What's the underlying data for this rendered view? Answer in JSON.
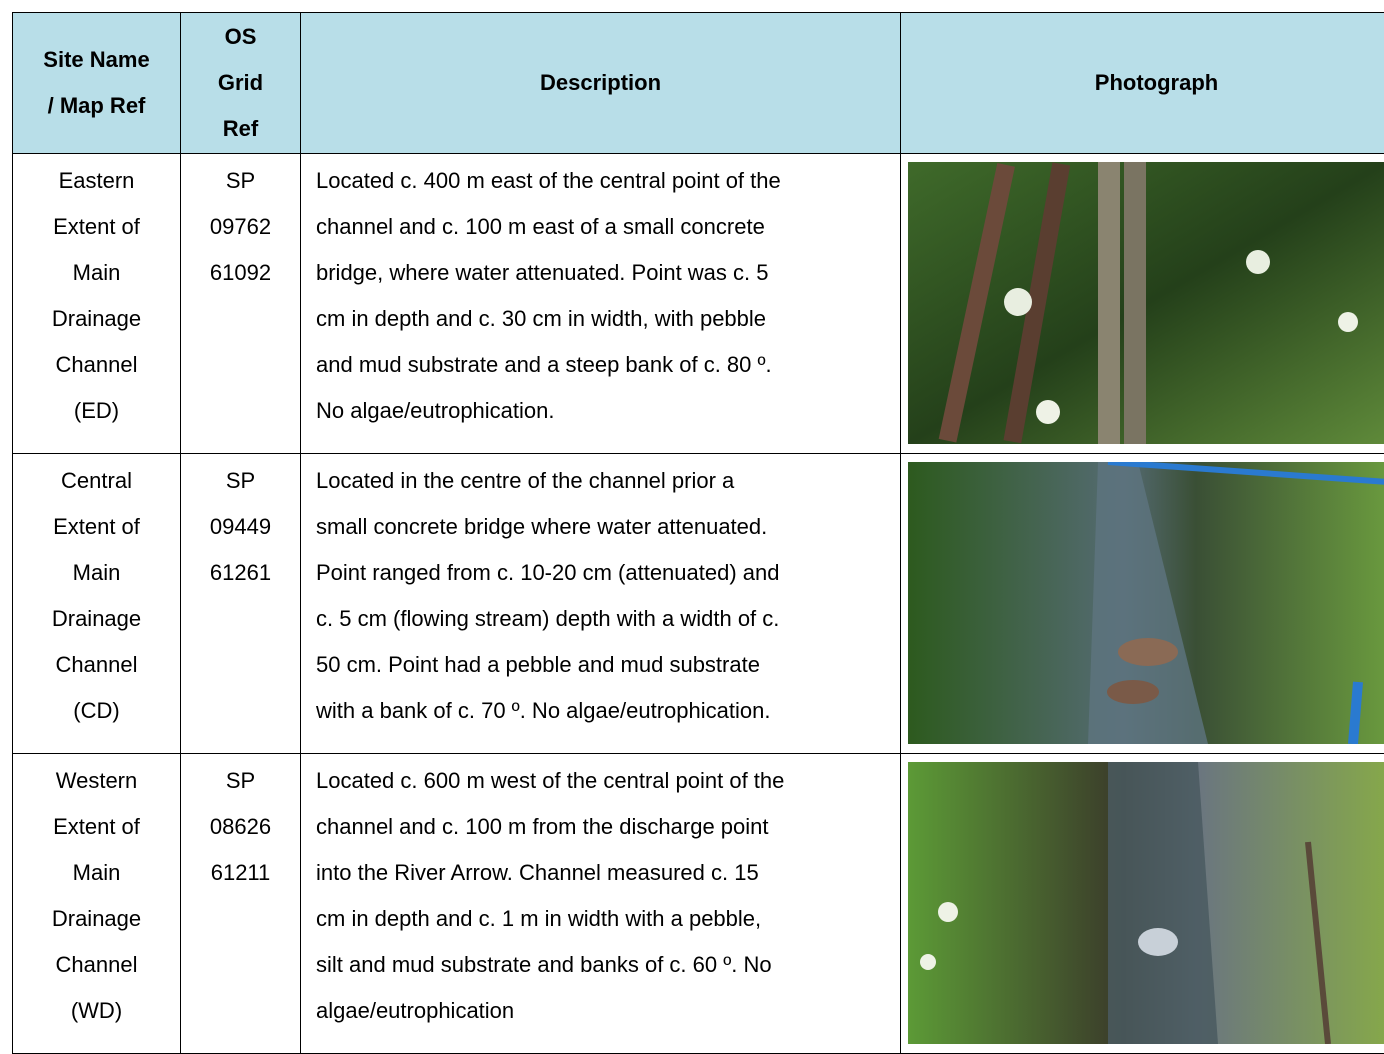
{
  "table": {
    "header": [
      [
        "Site Name",
        "/ Map Ref"
      ],
      [
        "OS",
        "Grid",
        "Ref"
      ],
      [
        "Description"
      ],
      [
        "Photograph"
      ]
    ],
    "rows": [
      [
        [
          "Eastern",
          "Extent of",
          "Main",
          "Drainage",
          "Channel",
          "(ED)"
        ],
        [
          "SP",
          "09762",
          "61092"
        ],
        [
          "Located c. 400 m east of the central point of the",
          "channel and c. 100 m east of a small concrete",
          "bridge, where water attenuated. Point was c. 5",
          "cm in depth and c. 30 cm in width, with pebble",
          "and mud substrate and a steep bank of c. 80 º.",
          "No algae/eutrophication."
        ]
      ],
      [
        [
          "Central",
          "Extent of",
          "Main",
          "Drainage",
          "Channel",
          "(CD)"
        ],
        [
          "SP",
          "09449",
          "61261"
        ],
        [
          "Located in the centre of the channel prior a",
          "small concrete bridge where water attenuated.",
          "Point ranged from c. 10-20 cm (attenuated) and",
          "c. 5 cm (flowing stream) depth with a width of c.",
          "50 cm. Point had a pebble and mud substrate",
          "with a bank of c. 70 º. No algae/eutrophication."
        ]
      ],
      [
        [
          "Western",
          "Extent of",
          "Main",
          "Drainage",
          "Channel",
          "(WD)"
        ],
        [
          "SP",
          "08626",
          "61211"
        ],
        [
          "Located c. 600 m west of the central point of the",
          "channel and c. 100 m from the discharge point",
          "into the River Arrow. Channel measured c. 15",
          "cm in depth and c. 1 m in width with a pebble,",
          "silt and mud substrate and banks of c. 60 º. No",
          "algae/eutrophication"
        ]
      ]
    ]
  }
}
